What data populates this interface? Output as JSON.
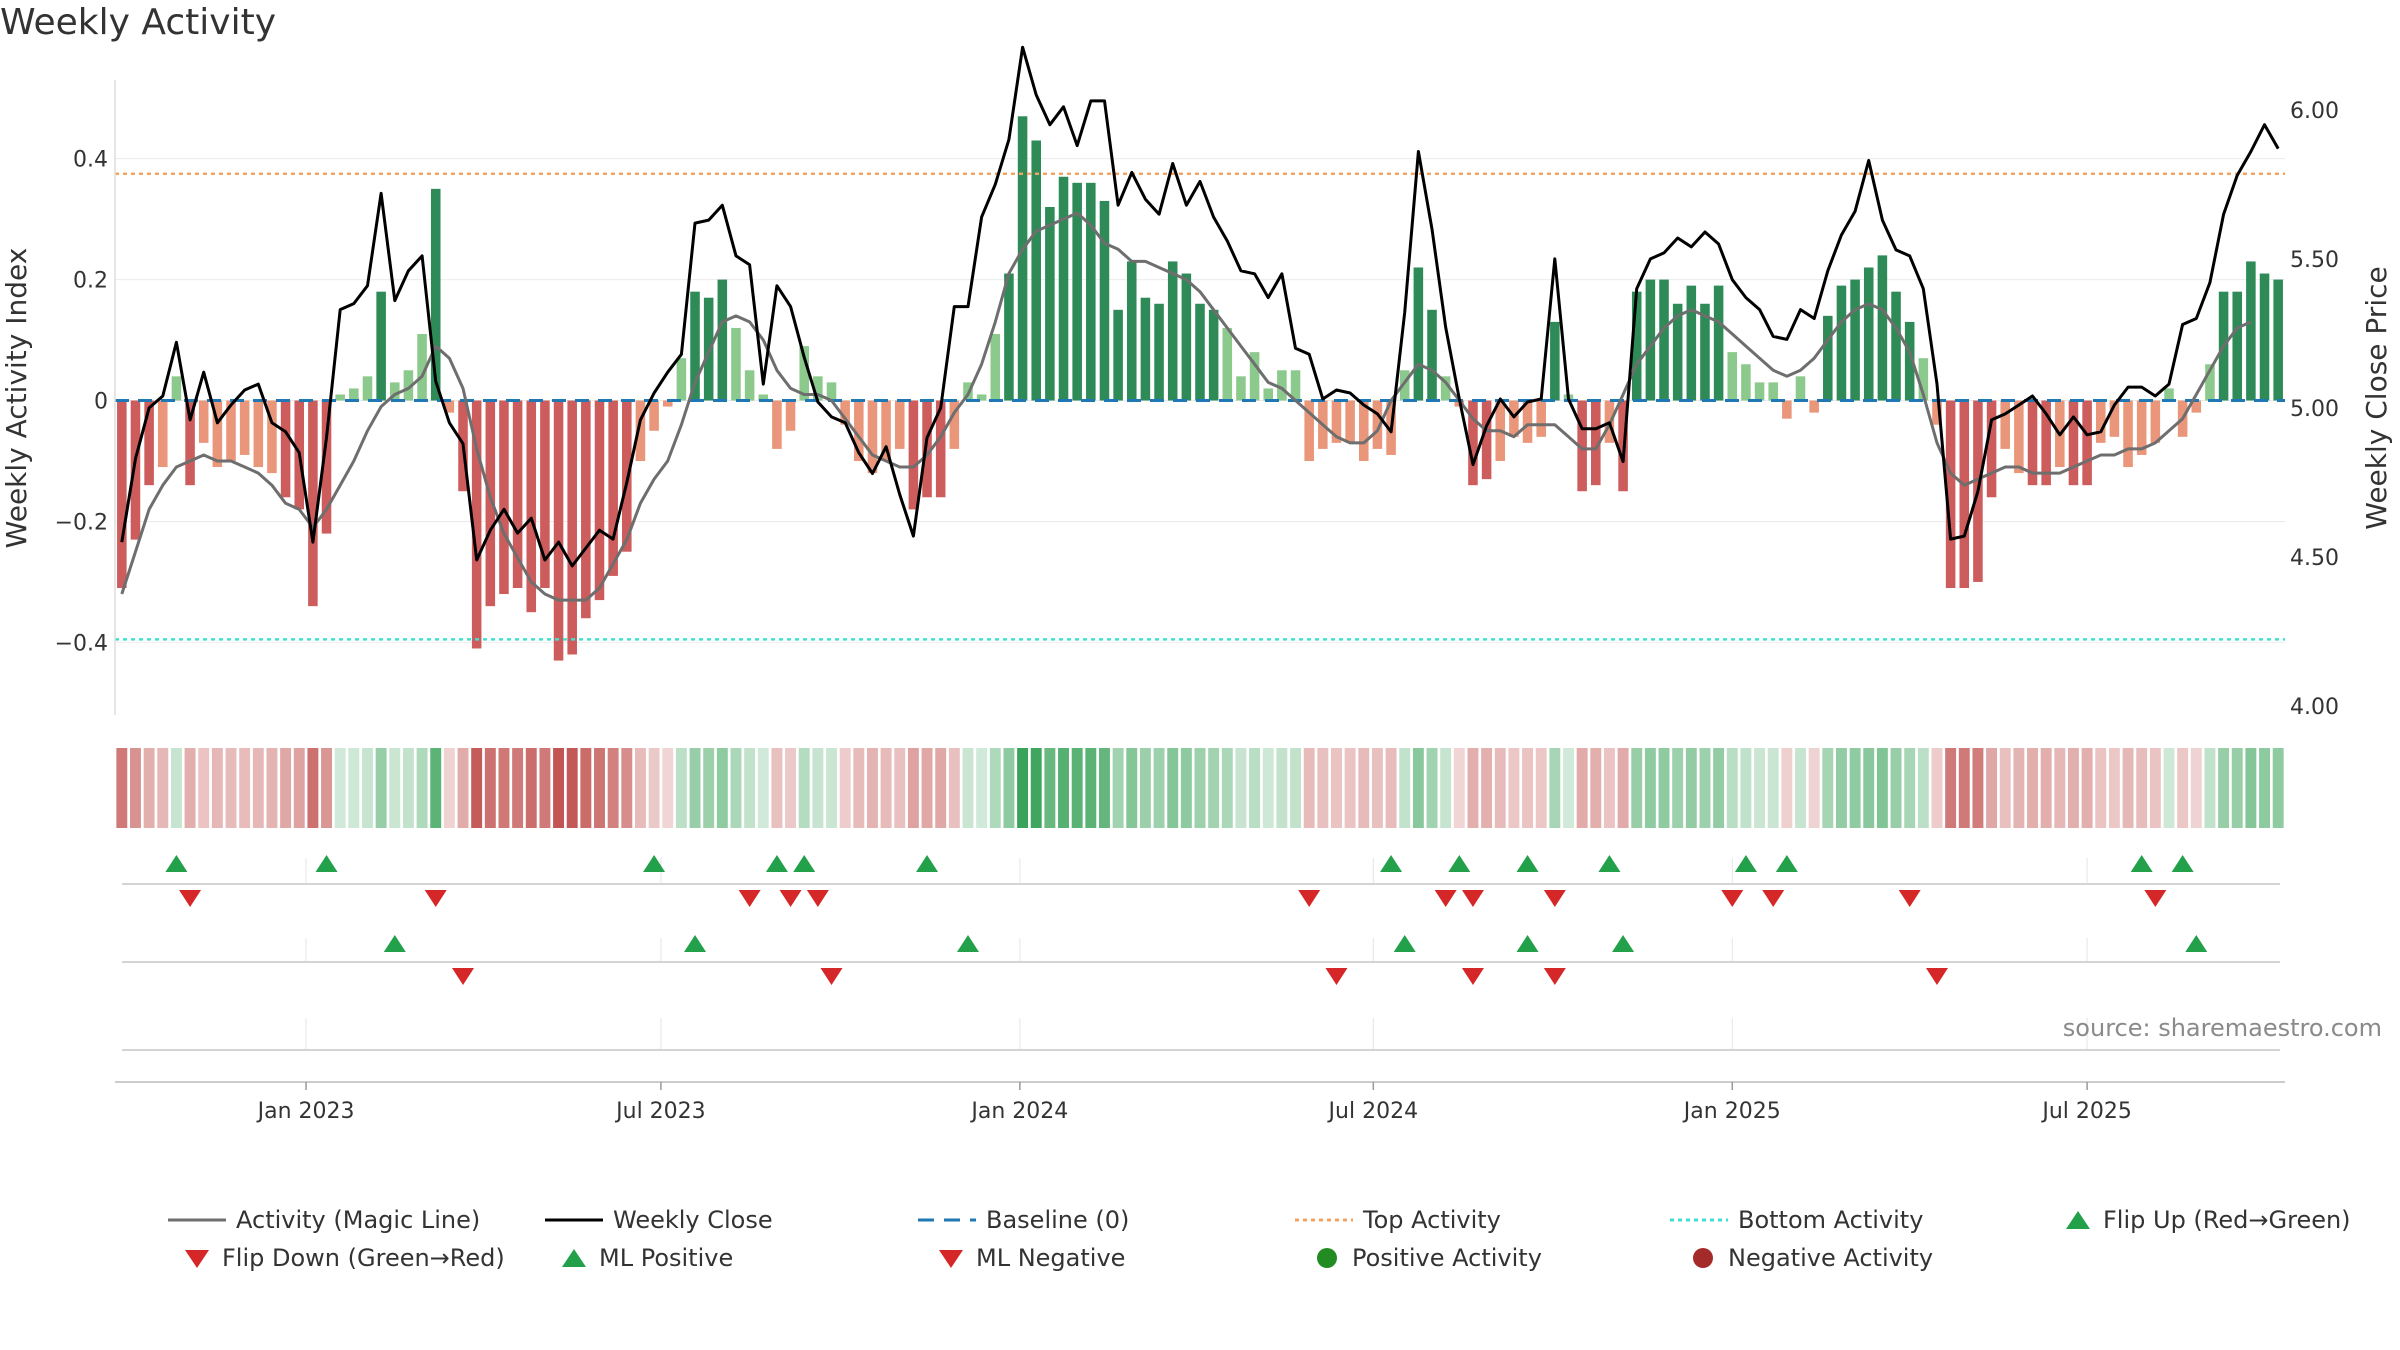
{
  "title": "Weekly Activity",
  "source": "source: sharemaestro.com",
  "colors": {
    "pos_dark": "#2e8b57",
    "pos_light": "#8cc98c",
    "neg_dark": "#cd5c5c",
    "neg_light": "#e9967a",
    "magic": "#6e6e6e",
    "close": "#000000",
    "baseline": "#1f77b4",
    "top": "#f4a460",
    "bottom": "#40e0d0",
    "up": "#22a04a",
    "down": "#d62728",
    "pos_dot": "#228b22",
    "neg_dot": "#a52a2a"
  },
  "chart_data": {
    "type": "bar",
    "title": "Weekly Activity",
    "ylabel_left": "Weekly Activity Index",
    "ylabel_right": "Weekly Close Price",
    "left_axis": {
      "ylim": [
        -0.52,
        0.53
      ],
      "ticks": [
        0.4,
        0.2,
        0,
        -0.2,
        -0.4
      ],
      "tick_labels": [
        "0.4",
        "0.2",
        "0",
        "−0.2",
        "−0.4"
      ]
    },
    "right_axis": {
      "ylim": [
        3.97,
        6.1
      ],
      "ticks": [
        6.0,
        5.5,
        5.0,
        4.5,
        4.0
      ],
      "tick_labels": [
        "6.00",
        "5.50",
        "5.00",
        "4.50",
        "4.00"
      ]
    },
    "x_ticks": [
      {
        "week": 13.5,
        "label": "Jan 2023"
      },
      {
        "week": 39.5,
        "label": "Jul 2023"
      },
      {
        "week": 65.8,
        "label": "Jan 2024"
      },
      {
        "week": 91.7,
        "label": "Jul 2024"
      },
      {
        "week": 118,
        "label": "Jan 2025"
      },
      {
        "week": 144,
        "label": "Jul 2025"
      }
    ],
    "top_activity": 0.375,
    "bottom_activity": -0.395,
    "baseline": 0,
    "activity": [
      -0.31,
      -0.23,
      -0.14,
      -0.11,
      0.04,
      -0.14,
      -0.07,
      -0.11,
      -0.1,
      -0.09,
      -0.11,
      -0.12,
      -0.16,
      -0.18,
      -0.34,
      -0.22,
      0.01,
      0.02,
      0.04,
      0.18,
      0.03,
      0.05,
      0.11,
      0.35,
      -0.02,
      -0.15,
      -0.41,
      -0.34,
      -0.32,
      -0.31,
      -0.35,
      -0.31,
      -0.43,
      -0.42,
      -0.36,
      -0.33,
      -0.29,
      -0.25,
      -0.1,
      -0.05,
      -0.01,
      0.07,
      0.18,
      0.17,
      0.2,
      0.12,
      0.05,
      0.01,
      -0.08,
      -0.05,
      0.09,
      0.04,
      0.03,
      -0.04,
      -0.1,
      -0.12,
      -0.1,
      -0.08,
      -0.18,
      -0.16,
      -0.16,
      -0.08,
      0.03,
      0.01,
      0.11,
      0.21,
      0.47,
      0.43,
      0.32,
      0.37,
      0.36,
      0.36,
      0.33,
      0.15,
      0.23,
      0.17,
      0.16,
      0.23,
      0.21,
      0.16,
      0.15,
      0.12,
      0.04,
      0.08,
      0.02,
      0.05,
      0.05,
      -0.1,
      -0.08,
      -0.07,
      -0.07,
      -0.1,
      -0.08,
      -0.09,
      0.05,
      0.22,
      0.15,
      0.04,
      -0.01,
      -0.14,
      -0.13,
      -0.1,
      -0.06,
      -0.07,
      -0.06,
      0.13,
      0.01,
      -0.15,
      -0.14,
      -0.07,
      -0.15,
      0.18,
      0.2,
      0.2,
      0.16,
      0.19,
      0.16,
      0.19,
      0.08,
      0.06,
      0.03,
      0.03,
      -0.03,
      0.04,
      -0.02,
      0.14,
      0.19,
      0.2,
      0.22,
      0.24,
      0.18,
      0.13,
      0.07,
      -0.04,
      -0.31,
      -0.31,
      -0.3,
      -0.16,
      -0.08,
      -0.12,
      -0.14,
      -0.14,
      -0.11,
      -0.14,
      -0.14,
      -0.07,
      -0.06,
      -0.11,
      -0.09,
      -0.07,
      0.02,
      -0.06,
      -0.02,
      0.06,
      0.18,
      0.18,
      0.23,
      0.21,
      0.2
    ],
    "weekly_close": [
      4.55,
      4.83,
      5.0,
      5.04,
      5.22,
      4.96,
      5.12,
      4.95,
      5.01,
      5.06,
      5.08,
      4.95,
      4.92,
      4.85,
      4.55,
      4.9,
      5.33,
      5.35,
      5.41,
      5.72,
      5.36,
      5.46,
      5.51,
      5.09,
      4.95,
      4.88,
      4.49,
      4.59,
      4.66,
      4.58,
      4.63,
      4.49,
      4.55,
      4.47,
      4.53,
      4.59,
      4.56,
      4.75,
      4.96,
      5.05,
      5.12,
      5.18,
      5.62,
      5.63,
      5.68,
      5.51,
      5.48,
      5.08,
      5.41,
      5.34,
      5.17,
      5.02,
      4.97,
      4.95,
      4.85,
      4.78,
      4.87,
      4.71,
      4.57,
      4.9,
      5.0,
      5.34,
      5.34,
      5.64,
      5.75,
      5.9,
      6.21,
      6.05,
      5.95,
      6.01,
      5.88,
      6.03,
      6.03,
      5.68,
      5.79,
      5.7,
      5.65,
      5.82,
      5.68,
      5.76,
      5.64,
      5.56,
      5.46,
      5.45,
      5.37,
      5.45,
      5.2,
      5.18,
      5.03,
      5.06,
      5.05,
      5.01,
      4.98,
      4.92,
      5.32,
      5.86,
      5.6,
      5.27,
      5.03,
      4.81,
      4.94,
      5.03,
      4.97,
      5.02,
      5.03,
      5.5,
      5.03,
      4.93,
      4.93,
      4.95,
      4.82,
      5.4,
      5.5,
      5.52,
      5.57,
      5.54,
      5.59,
      5.55,
      5.43,
      5.37,
      5.33,
      5.24,
      5.23,
      5.33,
      5.3,
      5.46,
      5.58,
      5.66,
      5.83,
      5.63,
      5.53,
      5.51,
      5.4,
      5.08,
      4.56,
      4.57,
      4.72,
      4.96,
      4.98,
      5.01,
      5.04,
      4.98,
      4.91,
      4.97,
      4.91,
      4.92,
      5.01,
      5.07,
      5.07,
      5.04,
      5.08,
      5.28,
      5.3,
      5.42,
      5.65,
      5.78,
      5.86,
      5.95,
      5.87
    ],
    "magic_line": [
      -0.32,
      -0.25,
      -0.18,
      -0.14,
      -0.11,
      -0.1,
      -0.09,
      -0.1,
      -0.1,
      -0.11,
      -0.12,
      -0.14,
      -0.17,
      -0.18,
      -0.21,
      -0.18,
      -0.14,
      -0.1,
      -0.05,
      -0.01,
      0.01,
      0.02,
      0.04,
      0.09,
      0.07,
      0.02,
      -0.08,
      -0.16,
      -0.22,
      -0.26,
      -0.3,
      -0.32,
      -0.33,
      -0.33,
      -0.33,
      -0.31,
      -0.27,
      -0.23,
      -0.17,
      -0.13,
      -0.1,
      -0.04,
      0.03,
      0.08,
      0.13,
      0.14,
      0.13,
      0.1,
      0.05,
      0.02,
      0.01,
      0.01,
      0.0,
      -0.03,
      -0.06,
      -0.09,
      -0.1,
      -0.11,
      -0.11,
      -0.09,
      -0.06,
      -0.02,
      0.01,
      0.06,
      0.13,
      0.21,
      0.25,
      0.28,
      0.29,
      0.3,
      0.31,
      0.29,
      0.26,
      0.25,
      0.23,
      0.23,
      0.22,
      0.21,
      0.2,
      0.18,
      0.15,
      0.12,
      0.09,
      0.06,
      0.03,
      0.02,
      0.0,
      -0.02,
      -0.04,
      -0.06,
      -0.07,
      -0.07,
      -0.05,
      0.0,
      0.03,
      0.06,
      0.05,
      0.03,
      0.0,
      -0.03,
      -0.05,
      -0.05,
      -0.06,
      -0.04,
      -0.04,
      -0.04,
      -0.06,
      -0.08,
      -0.08,
      -0.04,
      0.01,
      0.06,
      0.09,
      0.12,
      0.14,
      0.15,
      0.14,
      0.13,
      0.11,
      0.09,
      0.07,
      0.05,
      0.04,
      0.05,
      0.07,
      0.1,
      0.13,
      0.15,
      0.16,
      0.15,
      0.12,
      0.08,
      0.01,
      -0.07,
      -0.12,
      -0.14,
      -0.13,
      -0.12,
      -0.11,
      -0.11,
      -0.12,
      -0.12,
      -0.12,
      -0.11,
      -0.1,
      -0.09,
      -0.09,
      -0.08,
      -0.08,
      -0.07,
      -0.05,
      -0.03,
      0.01,
      0.05,
      0.09,
      0.12,
      0.13
    ],
    "flip_up": [
      4,
      15,
      39,
      48,
      50,
      59,
      93,
      98,
      103,
      109,
      119,
      122,
      148,
      151
    ],
    "flip_down": [
      5,
      23,
      46,
      49,
      51,
      87,
      97,
      99,
      105,
      118,
      121,
      131,
      149
    ],
    "ml_positive": [
      20,
      42,
      62,
      94,
      103,
      110,
      152
    ],
    "ml_negative": [
      25,
      52,
      89,
      99,
      105,
      133
    ]
  },
  "legend": {
    "row1": [
      "Activity (Magic Line)",
      "Weekly Close",
      "Baseline (0)",
      "Top Activity",
      "Bottom Activity",
      "Flip Up (Red→Green)"
    ],
    "row2": [
      "Flip Down (Green→Red)",
      "ML Positive",
      "ML Negative",
      "Positive Activity",
      "Negative Activity"
    ]
  }
}
